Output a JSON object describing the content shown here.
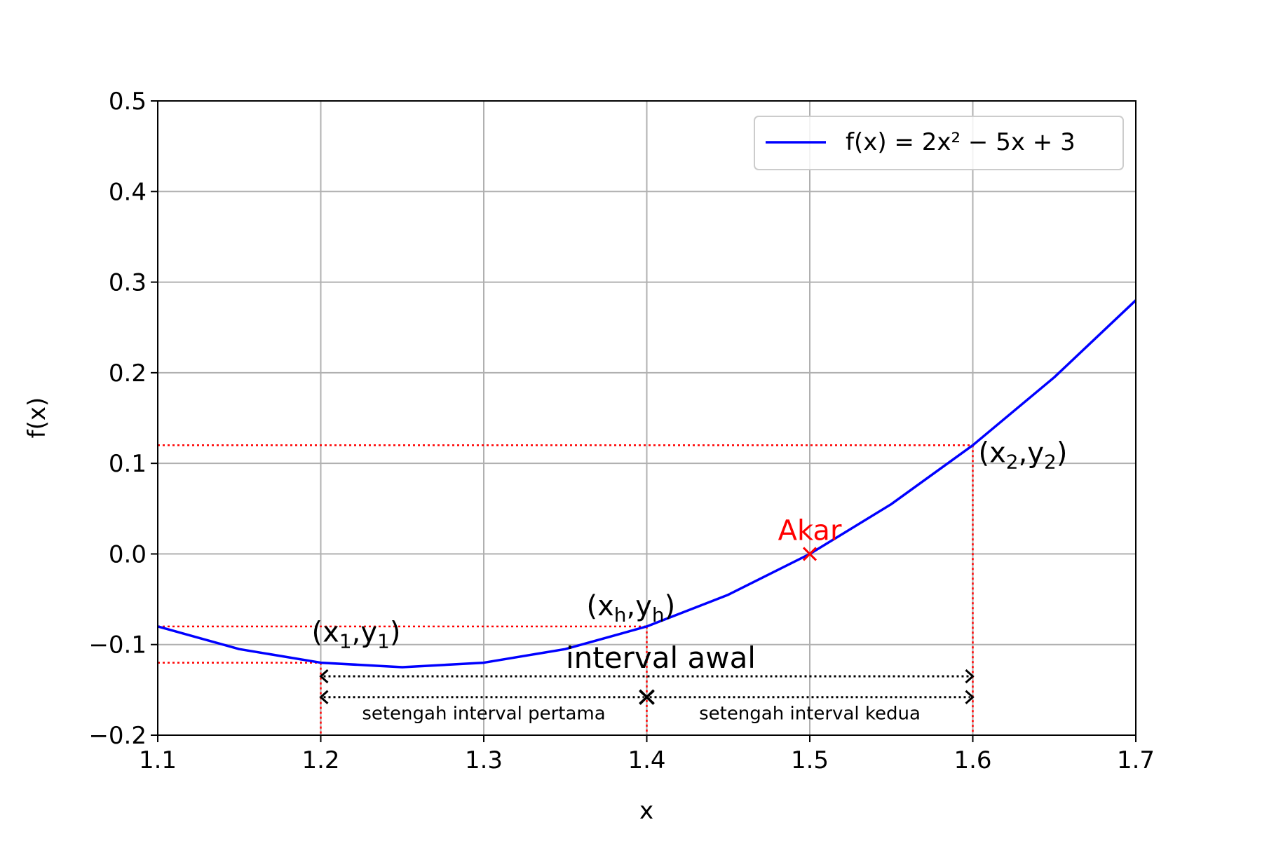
{
  "chart_data": {
    "type": "line",
    "xlabel": "x",
    "ylabel": "f(x)",
    "xlim": [
      1.1,
      1.7
    ],
    "ylim": [
      -0.2,
      0.5
    ],
    "grid": true,
    "legend_position": "top-right",
    "x_ticks": [
      1.1,
      1.2,
      1.3,
      1.4,
      1.5,
      1.6,
      1.7
    ],
    "x_tick_labels": [
      "1.1",
      "1.2",
      "1.3",
      "1.4",
      "1.5",
      "1.6",
      "1.7"
    ],
    "y_ticks": [
      -0.2,
      -0.1,
      0.0,
      0.1,
      0.2,
      0.3,
      0.4,
      0.5
    ],
    "y_tick_labels": [
      "−0.2",
      "−0.1",
      "0.0",
      "0.1",
      "0.2",
      "0.3",
      "0.4",
      "0.5"
    ],
    "series": [
      {
        "name": "f(x) = 2x² − 5x + 3",
        "color": "#0000ff",
        "x": [
          1.1,
          1.15,
          1.2,
          1.25,
          1.3,
          1.35,
          1.4,
          1.45,
          1.5,
          1.55,
          1.6,
          1.65,
          1.7
        ],
        "y": [
          -0.08,
          -0.105,
          -0.12,
          -0.125,
          -0.12,
          -0.105,
          -0.08,
          -0.045,
          0.0,
          0.055,
          0.12,
          0.195,
          0.28
        ]
      }
    ],
    "points": [
      {
        "id": "p1",
        "x": 1.2,
        "y": -0.12,
        "label_parts": [
          "(x",
          "1",
          ",y",
          "1",
          ")"
        ]
      },
      {
        "id": "ph",
        "x": 1.4,
        "y": -0.08,
        "label_parts": [
          "(x",
          "h",
          ",y",
          "h",
          ")"
        ]
      },
      {
        "id": "p2",
        "x": 1.6,
        "y": 0.12,
        "label_parts": [
          "(x",
          "2",
          ",y",
          "2",
          ")"
        ]
      }
    ],
    "root": {
      "x": 1.5,
      "y": 0.0,
      "label": "Akar",
      "color": "#ff0000"
    },
    "guide_color": "#ff0000",
    "intervals": [
      {
        "id": "interval-awal",
        "x_start": 1.2,
        "x_end": 1.6,
        "y": -0.135,
        "label": "interval awal"
      },
      {
        "id": "setengah-pertama",
        "x_start": 1.2,
        "x_end": 1.4,
        "y": -0.158,
        "label": "setengah interval pertama"
      },
      {
        "id": "setengah-kedua",
        "x_start": 1.4,
        "x_end": 1.6,
        "y": -0.158,
        "label": "setengah interval kedua"
      }
    ],
    "midpoint_marker": {
      "x": 1.4,
      "y": -0.158
    }
  }
}
